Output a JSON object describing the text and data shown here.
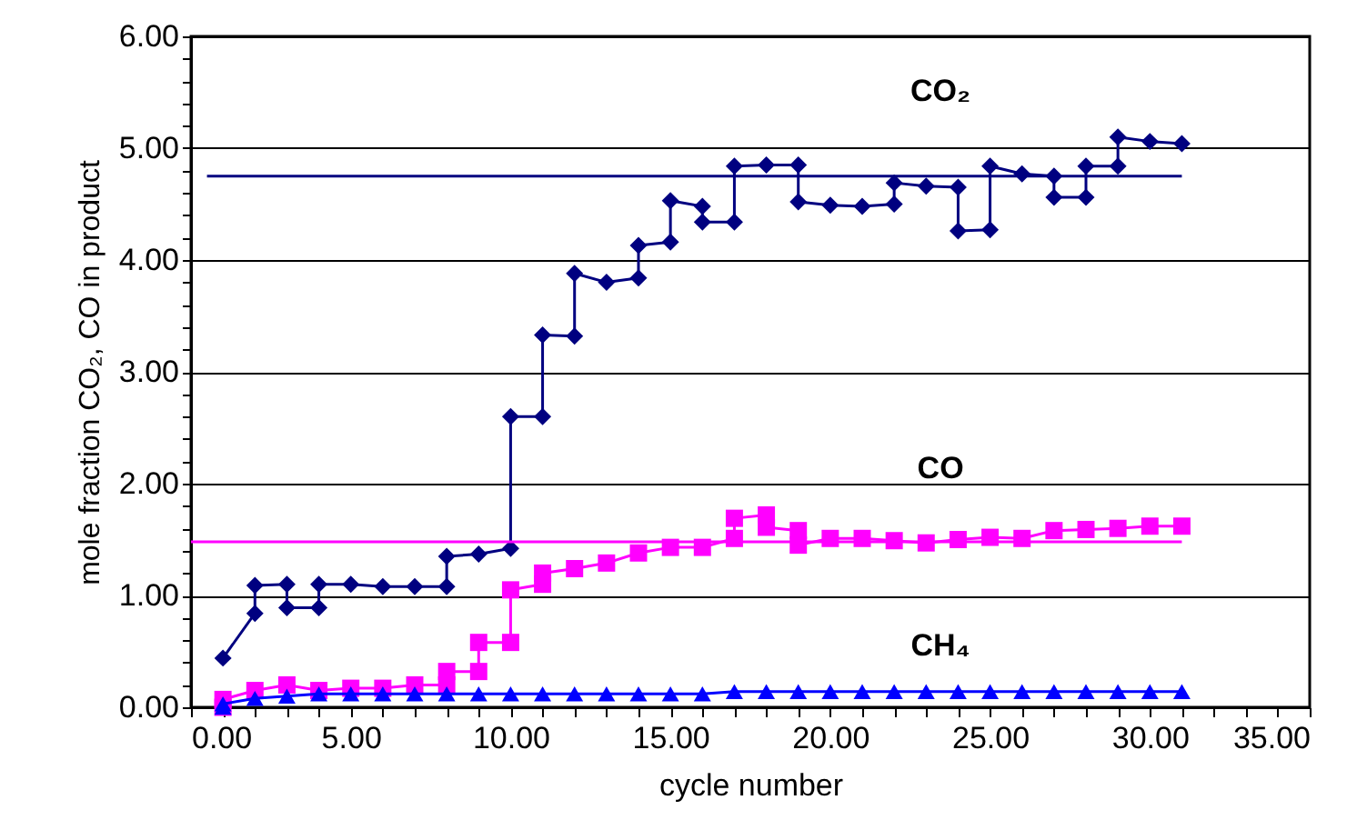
{
  "chart_data": {
    "type": "line",
    "xlabel": "cycle number",
    "ylabel": "mole fraction CO₂, CO in product",
    "xlim": [
      0,
      35
    ],
    "ylim": [
      0,
      6
    ],
    "xticks": [
      {
        "value": 0,
        "label": "0.00"
      },
      {
        "value": 1,
        "label": null
      },
      {
        "value": 2,
        "label": null
      },
      {
        "value": 3,
        "label": null
      },
      {
        "value": 4,
        "label": null
      },
      {
        "value": 5,
        "label": "5.00"
      },
      {
        "value": 6,
        "label": null
      },
      {
        "value": 7,
        "label": null
      },
      {
        "value": 8,
        "label": null
      },
      {
        "value": 9,
        "label": null
      },
      {
        "value": 10,
        "label": "10.00"
      },
      {
        "value": 11,
        "label": null
      },
      {
        "value": 12,
        "label": null
      },
      {
        "value": 13,
        "label": null
      },
      {
        "value": 14,
        "label": null
      },
      {
        "value": 15,
        "label": "15.00"
      },
      {
        "value": 16,
        "label": null
      },
      {
        "value": 17,
        "label": null
      },
      {
        "value": 18,
        "label": null
      },
      {
        "value": 19,
        "label": null
      },
      {
        "value": 20,
        "label": "20.00"
      },
      {
        "value": 21,
        "label": null
      },
      {
        "value": 22,
        "label": null
      },
      {
        "value": 23,
        "label": null
      },
      {
        "value": 24,
        "label": null
      },
      {
        "value": 25,
        "label": "25.00"
      },
      {
        "value": 26,
        "label": null
      },
      {
        "value": 27,
        "label": null
      },
      {
        "value": 28,
        "label": null
      },
      {
        "value": 29,
        "label": null
      },
      {
        "value": 30,
        "label": "30.00"
      },
      {
        "value": 31,
        "label": null
      },
      {
        "value": 32,
        "label": null
      },
      {
        "value": 33,
        "label": null
      },
      {
        "value": 34,
        "label": null
      },
      {
        "value": 35,
        "label": "35.00"
      }
    ],
    "yticks": [
      {
        "value": 0,
        "label": "0.00"
      },
      {
        "value": 0.2,
        "label": null
      },
      {
        "value": 0.4,
        "label": null
      },
      {
        "value": 0.6,
        "label": null
      },
      {
        "value": 0.8,
        "label": null
      },
      {
        "value": 1,
        "label": "1.00"
      },
      {
        "value": 1.2,
        "label": null
      },
      {
        "value": 1.4,
        "label": null
      },
      {
        "value": 1.6,
        "label": null
      },
      {
        "value": 1.8,
        "label": null
      },
      {
        "value": 2,
        "label": "2.00"
      },
      {
        "value": 2.2,
        "label": null
      },
      {
        "value": 2.4,
        "label": null
      },
      {
        "value": 2.6,
        "label": null
      },
      {
        "value": 2.8,
        "label": null
      },
      {
        "value": 3,
        "label": "3.00"
      },
      {
        "value": 3.2,
        "label": null
      },
      {
        "value": 3.4,
        "label": null
      },
      {
        "value": 3.6,
        "label": null
      },
      {
        "value": 3.8,
        "label": null
      },
      {
        "value": 4,
        "label": "4.00"
      },
      {
        "value": 4.2,
        "label": null
      },
      {
        "value": 4.4,
        "label": null
      },
      {
        "value": 4.6,
        "label": null
      },
      {
        "value": 4.8,
        "label": null
      },
      {
        "value": 5,
        "label": "5.00"
      },
      {
        "value": 5.2,
        "label": null
      },
      {
        "value": 5.4,
        "label": null
      },
      {
        "value": 5.6,
        "label": null
      },
      {
        "value": 5.8,
        "label": null
      },
      {
        "value": 6,
        "label": "6.00"
      }
    ],
    "grid": "y",
    "line_style": "solid",
    "series": [
      {
        "name": "CO₂",
        "color": "#000080",
        "marker": "diamond",
        "x": [
          1,
          2,
          2,
          3,
          3,
          4,
          4,
          5,
          6,
          7,
          8,
          8,
          9,
          10,
          10,
          11,
          11,
          12,
          12,
          13,
          14,
          14,
          15,
          15,
          16,
          16,
          17,
          17,
          18,
          19,
          19,
          20,
          21,
          22,
          22,
          23,
          24,
          24,
          25,
          25,
          26,
          27,
          27,
          28,
          28,
          29,
          29,
          30,
          31
        ],
        "values": [
          0.44,
          0.84,
          1.09,
          1.1,
          0.89,
          0.89,
          1.1,
          1.1,
          1.08,
          1.08,
          1.08,
          1.35,
          1.37,
          1.42,
          2.6,
          2.6,
          3.33,
          3.32,
          3.88,
          3.8,
          3.84,
          4.13,
          4.16,
          4.53,
          4.48,
          4.34,
          4.34,
          4.84,
          4.85,
          4.85,
          4.52,
          4.49,
          4.48,
          4.5,
          4.69,
          4.66,
          4.65,
          4.26,
          4.27,
          4.84,
          4.77,
          4.75,
          4.56,
          4.56,
          4.84,
          4.84,
          5.1,
          5.06,
          5.04
        ]
      },
      {
        "name": "CO",
        "color": "#ff00ff",
        "marker": "square",
        "x": [
          1,
          1,
          2,
          3,
          4,
          5,
          6,
          7,
          8,
          8,
          9,
          9,
          10,
          10,
          11,
          11,
          12,
          13,
          14,
          15,
          16,
          17,
          17,
          18,
          18,
          19,
          19,
          20,
          21,
          22,
          23,
          24,
          25,
          26,
          27,
          28,
          29,
          30,
          31
        ],
        "values": [
          0.0,
          0.07,
          0.15,
          0.2,
          0.15,
          0.17,
          0.17,
          0.2,
          0.2,
          0.32,
          0.32,
          0.58,
          0.58,
          1.05,
          1.1,
          1.2,
          1.24,
          1.29,
          1.38,
          1.43,
          1.43,
          1.51,
          1.69,
          1.72,
          1.61,
          1.58,
          1.45,
          1.51,
          1.51,
          1.49,
          1.47,
          1.5,
          1.52,
          1.51,
          1.58,
          1.59,
          1.6,
          1.62,
          1.62
        ]
      },
      {
        "name": "CH₄",
        "color": "#0000ff",
        "marker": "triangle",
        "x": [
          1,
          1,
          2,
          3,
          4,
          5,
          6,
          7,
          8,
          9,
          10,
          11,
          12,
          13,
          14,
          15,
          16,
          17,
          18,
          19,
          20,
          21,
          22,
          23,
          24,
          25,
          26,
          27,
          28,
          29,
          30,
          31
        ],
        "values": [
          0.0,
          0.03,
          0.08,
          0.1,
          0.12,
          0.12,
          0.12,
          0.12,
          0.12,
          0.12,
          0.12,
          0.12,
          0.12,
          0.12,
          0.12,
          0.12,
          0.12,
          0.14,
          0.14,
          0.14,
          0.14,
          0.14,
          0.14,
          0.14,
          0.14,
          0.14,
          0.14,
          0.14,
          0.14,
          0.14,
          0.14,
          0.14
        ]
      },
      {
        "color": "#000080",
        "marker": "none",
        "x": [
          0.5,
          31
        ],
        "values": [
          4.75,
          4.75
        ]
      },
      {
        "color": "#ff00ff",
        "marker": "none",
        "x": [
          0,
          31
        ],
        "values": [
          1.48,
          1.48
        ]
      }
    ]
  }
}
